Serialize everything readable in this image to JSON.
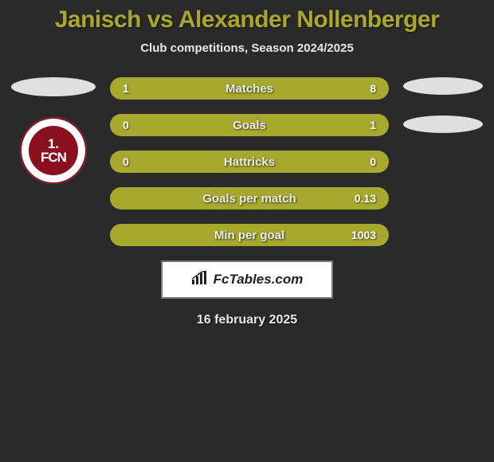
{
  "title": "Janisch vs Alexander Nollenberger",
  "subtitle": "Club competitions, Season 2024/2025",
  "date": "16 february 2025",
  "brand": "FcTables.com",
  "club_left": {
    "top": "1.",
    "bottom": "FCN"
  },
  "colors": {
    "bar_fill": "#a8a82e",
    "title_color": "#a8a82e",
    "background": "#2a2a2a",
    "badge_red": "#8a1020",
    "ellipse": "#e0e0e0"
  },
  "bars": [
    {
      "left": "1",
      "label": "Matches",
      "right": "8"
    },
    {
      "left": "0",
      "label": "Goals",
      "right": "1"
    },
    {
      "left": "0",
      "label": "Hattricks",
      "right": "0"
    },
    {
      "left": "",
      "label": "Goals per match",
      "right": "0.13"
    },
    {
      "left": "",
      "label": "Min per goal",
      "right": "1003"
    }
  ]
}
